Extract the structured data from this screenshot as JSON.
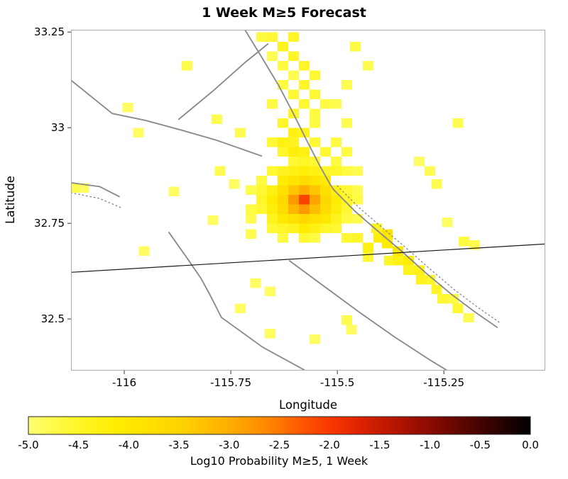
{
  "title": "1 Week M≥5 Forecast",
  "chart_data": {
    "type": "heatmap",
    "title": "1 Week M≥5 Forecast",
    "xlabel": "Longitude",
    "ylabel": "Latitude",
    "xlim": [
      -116.125,
      -115.012
    ],
    "ylim": [
      32.365,
      33.256
    ],
    "grid": false,
    "cell_size_deg": 0.025,
    "x_ticks": [
      {
        "v": -116,
        "label": "-116"
      },
      {
        "v": -115.75,
        "label": "-115.75"
      },
      {
        "v": -115.5,
        "label": "-115.5"
      },
      {
        "v": -115.25,
        "label": "-115.25"
      }
    ],
    "y_ticks": [
      {
        "v": 33.25,
        "label": "33.25"
      },
      {
        "v": 33,
        "label": "33"
      },
      {
        "v": 32.75,
        "label": "32.75"
      },
      {
        "v": 32.5,
        "label": "32.5"
      }
    ],
    "colormap": {
      "vmin": -5,
      "vmax": 0,
      "stops": [
        [
          0.0,
          "#FFFF70"
        ],
        [
          0.08,
          "#FFF833"
        ],
        [
          0.18,
          "#FFEC00"
        ],
        [
          0.3,
          "#FFD400"
        ],
        [
          0.4,
          "#FFAE00"
        ],
        [
          0.48,
          "#FF8400"
        ],
        [
          0.54,
          "#FF5A00"
        ],
        [
          0.6,
          "#F93800"
        ],
        [
          0.66,
          "#DF2300"
        ],
        [
          0.72,
          "#BC1600"
        ],
        [
          0.78,
          "#970D00"
        ],
        [
          0.84,
          "#6F0700"
        ],
        [
          0.9,
          "#450300"
        ],
        [
          0.96,
          "#1C0100"
        ],
        [
          1.0,
          "#000000"
        ]
      ]
    },
    "colorbar": {
      "label": "Log10 Probability M≥5, 1 Week",
      "tick_values": [
        -5,
        -4.5,
        -4,
        -3.5,
        -3,
        -2.5,
        -2,
        -1.5,
        -1,
        -0.5,
        0
      ],
      "ticks": [
        "-5.0",
        "-4.5",
        "-4.0",
        "-3.5",
        "-3.0",
        "-2.5",
        "-2.0",
        "-1.5",
        "-1.0",
        "-0.5",
        "0.0"
      ]
    },
    "styles": {
      "fault_color": "#8c8c8c",
      "border_color": "#1a1a1a",
      "plot_box_color": "#ababab"
    },
    "border_line": {
      "points": [
        [
          -116.125,
          32.622
        ],
        [
          -115.012,
          32.696
        ]
      ]
    },
    "fault_lines": [
      {
        "style": "solid",
        "points": [
          [
            -115.717,
            33.256
          ],
          [
            -115.678,
            33.185
          ],
          [
            -115.638,
            33.111
          ],
          [
            -115.605,
            33.041
          ],
          [
            -115.572,
            32.967
          ],
          [
            -115.542,
            32.902
          ],
          [
            -115.517,
            32.852
          ],
          [
            -115.508,
            32.837
          ],
          [
            -115.458,
            32.781
          ],
          [
            -115.405,
            32.73
          ],
          [
            -115.35,
            32.678
          ],
          [
            -115.292,
            32.62
          ],
          [
            -115.233,
            32.565
          ],
          [
            -115.178,
            32.519
          ],
          [
            -115.125,
            32.478
          ]
        ]
      },
      {
        "style": "dotted",
        "points": [
          [
            -115.5,
            32.848
          ],
          [
            -115.45,
            32.792
          ],
          [
            -115.397,
            32.741
          ],
          [
            -115.342,
            32.689
          ],
          [
            -115.283,
            32.631
          ],
          [
            -115.225,
            32.576
          ],
          [
            -115.17,
            32.53
          ],
          [
            -115.117,
            32.489
          ]
        ]
      },
      {
        "style": "solid",
        "points": [
          [
            -115.872,
            33.022
          ],
          [
            -115.792,
            33.096
          ],
          [
            -115.717,
            33.17
          ],
          [
            -115.663,
            33.219
          ]
        ]
      },
      {
        "style": "solid",
        "points": [
          [
            -116.125,
            33.124
          ],
          [
            -116.028,
            33.037
          ],
          [
            -115.95,
            33.019
          ],
          [
            -115.867,
            32.994
          ],
          [
            -115.783,
            32.967
          ],
          [
            -115.678,
            32.926
          ]
        ]
      },
      {
        "style": "solid",
        "points": [
          [
            -116.125,
            32.856
          ],
          [
            -116.058,
            32.846
          ],
          [
            -116.012,
            32.82
          ]
        ]
      },
      {
        "style": "dotted",
        "points": [
          [
            -116.125,
            32.83
          ],
          [
            -116.058,
            32.815
          ],
          [
            -116.008,
            32.791
          ]
        ]
      },
      {
        "style": "solid",
        "points": [
          [
            -115.895,
            32.726
          ],
          [
            -115.855,
            32.663
          ],
          [
            -115.82,
            32.606
          ],
          [
            -115.797,
            32.559
          ],
          [
            -115.772,
            32.504
          ],
          [
            -115.675,
            32.426
          ],
          [
            -115.578,
            32.367
          ]
        ]
      },
      {
        "style": "solid",
        "points": [
          [
            -115.612,
            32.652
          ],
          [
            -115.533,
            32.587
          ],
          [
            -115.45,
            32.519
          ],
          [
            -115.367,
            32.454
          ],
          [
            -115.283,
            32.393
          ],
          [
            -115.245,
            32.367
          ]
        ]
      }
    ],
    "cells": [
      [
        -115.578,
        32.812,
        -2.1
      ],
      [
        -115.603,
        32.812,
        -2.8
      ],
      [
        -115.553,
        32.812,
        -2.9
      ],
      [
        -115.578,
        32.787,
        -2.8
      ],
      [
        -115.578,
        32.837,
        -3.0
      ],
      [
        -115.603,
        32.787,
        -3.1
      ],
      [
        -115.553,
        32.787,
        -3.2
      ],
      [
        -115.603,
        32.837,
        -3.3
      ],
      [
        -115.553,
        32.837,
        -3.3
      ],
      [
        -115.628,
        32.812,
        -3.6
      ],
      [
        -115.528,
        32.812,
        -3.6
      ],
      [
        -115.578,
        32.762,
        -3.6
      ],
      [
        -115.578,
        32.862,
        -3.7
      ],
      [
        -115.628,
        32.787,
        -3.7
      ],
      [
        -115.628,
        32.837,
        -3.8
      ],
      [
        -115.528,
        32.787,
        -3.7
      ],
      [
        -115.528,
        32.837,
        -3.8
      ],
      [
        -115.553,
        32.762,
        -3.8
      ],
      [
        -115.603,
        32.762,
        -3.8
      ],
      [
        -115.553,
        32.862,
        -3.9
      ],
      [
        -115.603,
        32.862,
        -3.9
      ],
      [
        -115.628,
        32.762,
        -4.0
      ],
      [
        -115.528,
        32.762,
        -4.0
      ],
      [
        -115.628,
        32.862,
        -4.1
      ],
      [
        -115.528,
        32.862,
        -4.1
      ],
      [
        -115.653,
        32.812,
        -4.1
      ],
      [
        -115.503,
        32.812,
        -4.1
      ],
      [
        -115.578,
        32.737,
        -4.1
      ],
      [
        -115.578,
        32.887,
        -4.2
      ],
      [
        -115.653,
        32.787,
        -4.2
      ],
      [
        -115.653,
        32.837,
        -4.3
      ],
      [
        -115.503,
        32.787,
        -4.2
      ],
      [
        -115.503,
        32.837,
        -4.3
      ],
      [
        -115.553,
        32.887,
        -4.3
      ],
      [
        -115.603,
        32.887,
        -4.3
      ],
      [
        -115.553,
        32.737,
        -4.3
      ],
      [
        -115.603,
        32.737,
        -4.4
      ],
      [
        -115.653,
        32.762,
        -4.4
      ],
      [
        -115.503,
        32.762,
        -4.4
      ],
      [
        -115.628,
        32.887,
        -4.4
      ],
      [
        -115.528,
        32.887,
        -4.5
      ],
      [
        -115.628,
        32.737,
        -4.5
      ],
      [
        -115.503,
        32.887,
        -4.5
      ],
      [
        -115.528,
        32.737,
        -4.5
      ],
      [
        -115.678,
        32.812,
        -4.5
      ],
      [
        -115.678,
        32.787,
        -4.6
      ],
      [
        -115.678,
        32.837,
        -4.6
      ],
      [
        -115.478,
        32.812,
        -4.5
      ],
      [
        -115.478,
        32.787,
        -4.6
      ],
      [
        -115.478,
        32.837,
        -4.6
      ],
      [
        -115.578,
        32.912,
        -4.5
      ],
      [
        -115.553,
        32.912,
        -4.6
      ],
      [
        -115.603,
        32.912,
        -4.6
      ],
      [
        -115.578,
        32.712,
        -4.6
      ],
      [
        -115.553,
        32.712,
        -4.7
      ],
      [
        -115.628,
        32.712,
        -4.7
      ],
      [
        -115.478,
        32.762,
        -4.7
      ],
      [
        -115.453,
        32.812,
        -4.7
      ],
      [
        -115.703,
        32.787,
        -4.7
      ],
      [
        -115.653,
        32.887,
        -4.6
      ],
      [
        -115.653,
        32.737,
        -4.6
      ],
      [
        -115.503,
        32.737,
        -4.6
      ],
      [
        -115.478,
        32.887,
        -4.7
      ],
      [
        -115.453,
        32.762,
        -4.8
      ],
      [
        -115.678,
        32.862,
        -4.7
      ],
      [
        -115.703,
        32.837,
        -4.8
      ],
      [
        -115.703,
        32.762,
        -4.8
      ],
      [
        -115.453,
        32.837,
        -4.8
      ],
      [
        -115.603,
        32.937,
        -4.2
      ],
      [
        -115.578,
        32.937,
        -4.3
      ],
      [
        -115.628,
        32.962,
        -4.3
      ],
      [
        -115.603,
        32.962,
        -4.4
      ],
      [
        -115.578,
        32.987,
        -4.4
      ],
      [
        -115.603,
        32.987,
        -4.3
      ],
      [
        -115.553,
        32.962,
        -4.6
      ],
      [
        -115.628,
        33.012,
        -4.5
      ],
      [
        -115.603,
        33.037,
        -4.5
      ],
      [
        -115.578,
        33.062,
        -4.6
      ],
      [
        -115.553,
        33.037,
        -4.7
      ],
      [
        -115.578,
        33.112,
        -4.5
      ],
      [
        -115.553,
        33.087,
        -4.6
      ],
      [
        -115.603,
        33.087,
        -4.6
      ],
      [
        -115.553,
        33.137,
        -4.6
      ],
      [
        -115.578,
        33.162,
        -4.5
      ],
      [
        -115.603,
        33.187,
        -4.5
      ],
      [
        -115.628,
        33.212,
        -4.4
      ],
      [
        -115.603,
        33.237,
        -4.5
      ],
      [
        -115.653,
        33.237,
        -4.6
      ],
      [
        -115.628,
        33.162,
        -4.7
      ],
      [
        -115.528,
        33.062,
        -4.7
      ],
      [
        -115.653,
        33.062,
        -4.7
      ],
      [
        -115.628,
        33.112,
        -4.7
      ],
      [
        -115.503,
        32.912,
        -4.7
      ],
      [
        -115.478,
        32.937,
        -4.7
      ],
      [
        -115.453,
        32.887,
        -4.8
      ],
      [
        -115.503,
        32.962,
        -4.7
      ],
      [
        -115.478,
        33.012,
        -4.8
      ],
      [
        -115.528,
        32.937,
        -4.6
      ],
      [
        -115.553,
        33.012,
        -4.7
      ],
      [
        -115.628,
        32.937,
        -4.5
      ],
      [
        -115.653,
        32.962,
        -4.6
      ],
      [
        -115.678,
        33.237,
        -4.7
      ],
      [
        -115.653,
        33.187,
        -4.8
      ],
      [
        -115.603,
        33.137,
        -4.8
      ],
      [
        -115.853,
        33.162,
        -4.8
      ],
      [
        -115.458,
        33.212,
        -4.7
      ],
      [
        -115.428,
        33.162,
        -4.8
      ],
      [
        -115.478,
        33.112,
        -4.8
      ],
      [
        -115.503,
        33.062,
        -4.8
      ],
      [
        -115.217,
        33.012,
        -4.8
      ],
      [
        -115.283,
        32.887,
        -4.8
      ],
      [
        -115.267,
        32.853,
        -4.8
      ],
      [
        -115.308,
        32.912,
        -4.9
      ],
      [
        -115.203,
        32.703,
        -4.7
      ],
      [
        -115.178,
        32.693,
        -4.8
      ],
      [
        -115.242,
        32.753,
        -4.9
      ],
      [
        -115.453,
        32.712,
        -4.5
      ],
      [
        -115.428,
        32.687,
        -4.3
      ],
      [
        -115.408,
        32.737,
        -4.4
      ],
      [
        -115.403,
        32.712,
        -4.2
      ],
      [
        -115.383,
        32.722,
        -3.9
      ],
      [
        -115.383,
        32.697,
        -4.1
      ],
      [
        -115.358,
        32.678,
        -4.0
      ],
      [
        -115.358,
        32.653,
        -4.3
      ],
      [
        -115.333,
        32.653,
        -4.1
      ],
      [
        -115.333,
        32.628,
        -4.4
      ],
      [
        -115.308,
        32.628,
        -4.3
      ],
      [
        -115.303,
        32.603,
        -4.4
      ],
      [
        -115.283,
        32.603,
        -4.5
      ],
      [
        -115.267,
        32.578,
        -4.5
      ],
      [
        -115.253,
        32.553,
        -4.6
      ],
      [
        -115.228,
        32.553,
        -4.7
      ],
      [
        -115.217,
        32.528,
        -4.6
      ],
      [
        -115.192,
        32.503,
        -4.8
      ],
      [
        -115.478,
        32.712,
        -4.6
      ],
      [
        -115.428,
        32.662,
        -4.6
      ],
      [
        -115.378,
        32.653,
        -4.5
      ],
      [
        -115.992,
        33.053,
        -4.9
      ],
      [
        -115.967,
        32.987,
        -4.9
      ],
      [
        -115.783,
        33.022,
        -4.8
      ],
      [
        -115.728,
        32.987,
        -4.8
      ],
      [
        -115.775,
        32.887,
        -4.8
      ],
      [
        -115.742,
        32.853,
        -4.9
      ],
      [
        -115.883,
        32.833,
        -4.9
      ],
      [
        -116.117,
        32.842,
        -4.8
      ],
      [
        -116.095,
        32.842,
        -4.9
      ],
      [
        -115.953,
        32.678,
        -4.9
      ],
      [
        -115.792,
        32.758,
        -4.9
      ],
      [
        -115.703,
        32.722,
        -4.8
      ],
      [
        -115.692,
        32.593,
        -4.9
      ],
      [
        -115.658,
        32.572,
        -4.9
      ],
      [
        -115.728,
        32.528,
        -4.9
      ],
      [
        -115.478,
        32.497,
        -4.8
      ],
      [
        -115.467,
        32.472,
        -4.9
      ],
      [
        -115.658,
        32.462,
        -4.9
      ],
      [
        -115.553,
        32.447,
        -4.9
      ]
    ]
  }
}
